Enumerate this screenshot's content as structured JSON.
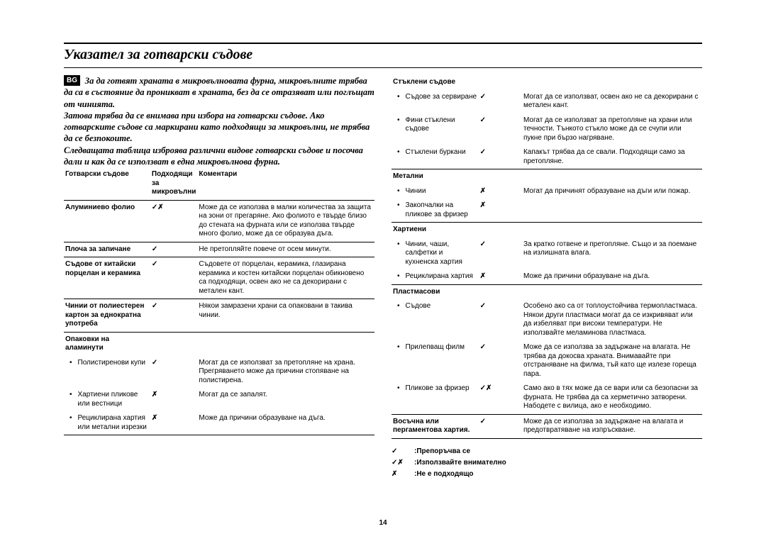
{
  "page_number": "14",
  "lang_badge": "BG",
  "title": "Указател за готварски съдове",
  "intro_paragraphs": [
    "За да готвят храната в микровълновата фурна, микровълните трябва да са в състояние да проникват в храната, без да се отразяват или поглъщат от чинията.",
    "Затова трябва да се внимава при избора на готварски съдове. Ако готварските съдове са маркирани като подходящи за микровълни, не трябва да се безпокоите.",
    "Следващата таблица изброява различни видове готварски съдове и посочва дали и как да се използват в една микровълнова фурна."
  ],
  "table_headers": {
    "item": "Готварски съдове",
    "safe": "Подходящи за микровълни",
    "comment": "Коментари"
  },
  "marks": {
    "yes": "✓",
    "no": "✗",
    "caution": "✓✗"
  },
  "left_rows": [
    {
      "item": "Алуминиево фолио",
      "bold": true,
      "safe": "caution",
      "comment": "Може да се използва в малки количества за защита на зони от прегаряне. Ако фолиото е твърде близо до стената на фурната или се използва твърде много фолио, може да се образува дъга."
    },
    {
      "item": "Плоча за запичане",
      "bold": true,
      "safe": "yes",
      "comment": "Не претопляйте повече от осем минути."
    },
    {
      "item": "Съдове от китайски порцелан и керамика",
      "bold": true,
      "safe": "yes",
      "comment": "Съдовете от порцелан, керамика, глазирана керамика и костен китайски порцелан обикновено са подходящи, освен ако не са декорирани с метален кант."
    },
    {
      "item": "Чинии от полиестерен картон за еднократна употреба",
      "bold": true,
      "safe": "yes",
      "comment": "Някои замразени храни са опаковани в такива чинии."
    },
    {
      "item": "Опаковки на аламинути",
      "bold": true,
      "header": true
    },
    {
      "item": "Полистиренови купи",
      "bullet": true,
      "safe": "yes",
      "comment": "Могат да се използват за претопляне на храна. Прегряването може да причини стопяване на полистирена."
    },
    {
      "item": "Хартиени пликове или вестници",
      "bullet": true,
      "safe": "no",
      "comment": "Могат да се запалят."
    },
    {
      "item": "Рециклирана хартия или метални изрезки",
      "bullet": true,
      "safe": "no",
      "comment": "Може да причини образуване на дъга."
    }
  ],
  "right_rows": [
    {
      "item": "Стъклени съдове",
      "bold": true,
      "header": true
    },
    {
      "item": "Съдове за сервиране",
      "bullet": true,
      "safe": "yes",
      "comment": "Могат да се използват, освен ако не са декорирани с метален кант."
    },
    {
      "item": "Фини стъклени съдове",
      "bullet": true,
      "safe": "yes",
      "comment": "Могат да се използват за претопляне на храни или течности. Тънкото стъкло може да се счупи или пукне при бързо нагряване."
    },
    {
      "item": "Стъклени буркани",
      "bullet": true,
      "safe": "yes",
      "comment": "Капакът трябва да се свали. Подходящи само за претопляне."
    },
    {
      "item": "Метални",
      "bold": true,
      "header": true
    },
    {
      "item": "Чинии",
      "bullet": true,
      "safe": "no",
      "comment": "Могат да причинят образуване на дъги или пожар."
    },
    {
      "item": "Закопчалки на пликове за фризер",
      "bullet": true,
      "safe": "no",
      "comment": ""
    },
    {
      "item": "Хартиени",
      "bold": true,
      "header": true
    },
    {
      "item": "Чинии, чаши, салфетки и кухненска хартия",
      "bullet": true,
      "safe": "yes",
      "comment": "За кратко готвене и претопляне. Също и за поемане на излишната влага."
    },
    {
      "item": "Рециклирана хартия",
      "bullet": true,
      "safe": "no",
      "comment": "Може да причини образуване на дъга."
    },
    {
      "item": "Пластмасови",
      "bold": true,
      "header": true
    },
    {
      "item": "Съдове",
      "bullet": true,
      "safe": "yes",
      "comment": "Особено ако са от топлоустойчива термопластмаса. Някои други пластмаси могат да се изкривяват или да избеляват при високи температури. Не използвайте меламинова пластмаса."
    },
    {
      "item": "Прилепващ филм",
      "bullet": true,
      "safe": "yes",
      "comment": "Може да се използва за задържане на влагата. Не трябва да докосва храната. Внимавайте при отстраняване на филма, тъй като ще излезе гореща пара."
    },
    {
      "item": "Пликове за фризер",
      "bullet": true,
      "safe": "caution",
      "comment": "Само ако в тях може да се вари или са безопасни за фурната. Не трябва да са херметично затворени. Набодете с вилица, ако е необходимо."
    },
    {
      "item": "Восъчна или пергаментова хартия.",
      "bold": true,
      "safe": "yes",
      "comment": "Може да се използва за задържане на влагата и предотвратяване на изпръскване."
    }
  ],
  "legend": [
    {
      "mark": "yes",
      "text": ":Препоръчва се"
    },
    {
      "mark": "caution",
      "text": ":Използвайте внимателно"
    },
    {
      "mark": "no",
      "text": ":Не е подходящо"
    }
  ]
}
